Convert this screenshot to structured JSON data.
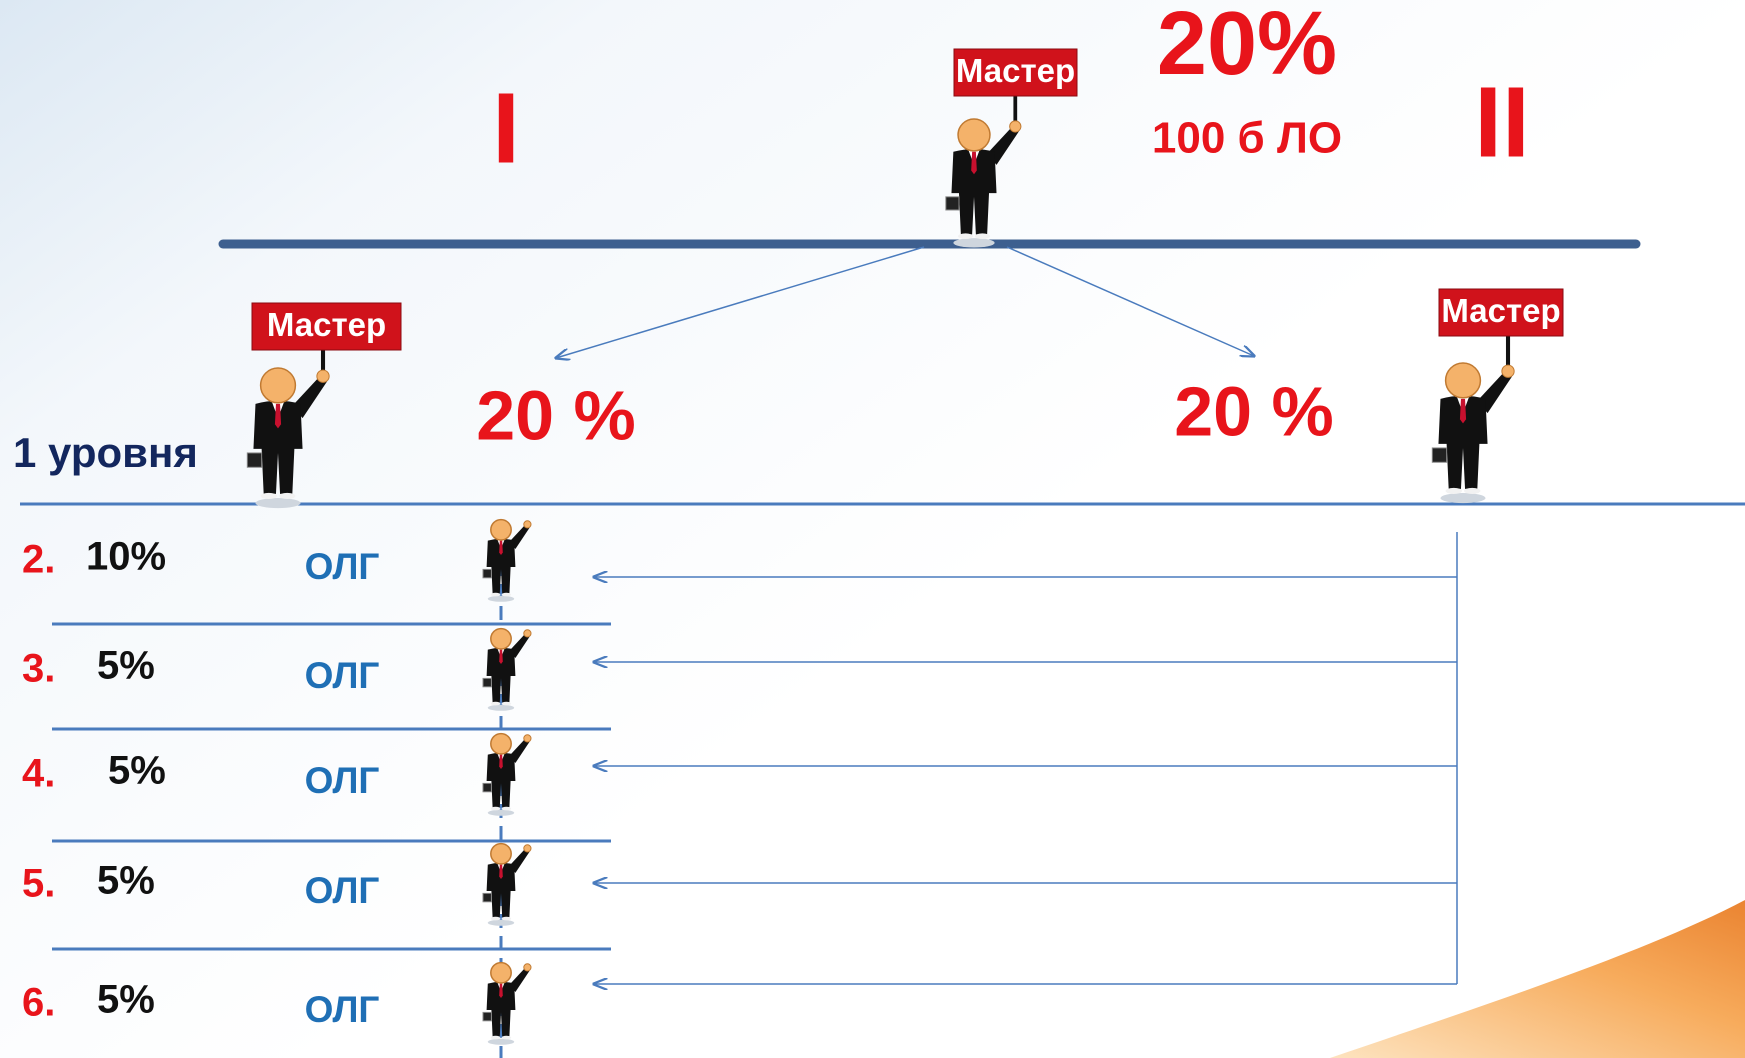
{
  "top": {
    "sign": "Мастер",
    "percent": "20%",
    "points": "100 б ЛО"
  },
  "branches": {
    "left": "I",
    "right": "II"
  },
  "left_master": {
    "sign": "Мастер",
    "percent": "20 %"
  },
  "right_master": {
    "sign": "Мастер",
    "percent": "20 %"
  },
  "level_label": "1 уровня",
  "rows": [
    {
      "number": "2.",
      "percent": "10%",
      "label": "ОЛГ"
    },
    {
      "number": "3.",
      "percent": "5%",
      "label": "ОЛГ"
    },
    {
      "number": "4.",
      "percent": "5%",
      "label": "ОЛГ"
    },
    {
      "number": "5.",
      "percent": "5%",
      "label": "ОЛГ"
    },
    {
      "number": "6.",
      "percent": "5%",
      "label": "ОЛГ"
    }
  ]
}
